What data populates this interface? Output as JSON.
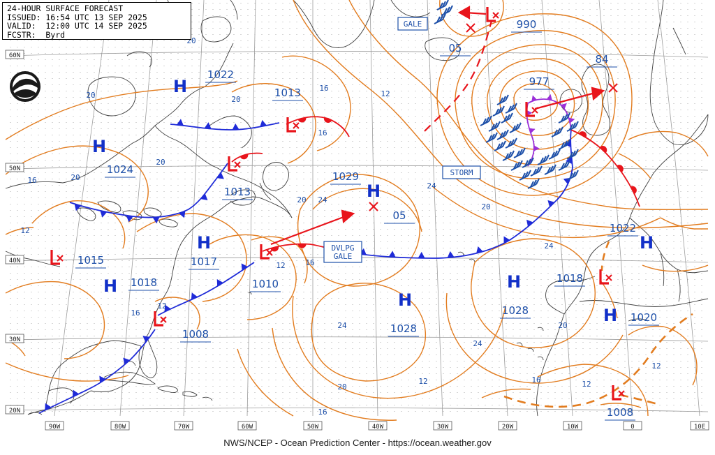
{
  "header": {
    "title": "24-HOUR SURFACE FORECAST",
    "issued": "ISSUED: 16:54 UTC 13 SEP 2025",
    "valid": "VALID:  12:00 UTC 14 SEP 2025",
    "forecaster": "FCSTR:  Byrd"
  },
  "credit": "NWS/NCEP - Ocean Prediction Center - https://ocean.weather.gov",
  "logo_icon": "noaa-logo-icon",
  "colors": {
    "isobar": "#e27c1f",
    "high": "#1230c8",
    "low": "#e8141b",
    "cold_front": "#1f2bd8",
    "warm_front": "#e8141b",
    "occluded_front": "#9b2fd8",
    "label": "#1d4fa8",
    "grid": "#a8a8a8",
    "coast": "#404040"
  },
  "lat_labels": [
    "60N",
    "50N",
    "40N",
    "30N",
    "20N"
  ],
  "lon_labels": [
    "90W",
    "80W",
    "70W",
    "60W",
    "50W",
    "40W",
    "30W",
    "20W",
    "10W",
    "0",
    "10E"
  ],
  "warnings": [
    {
      "id": "gale",
      "text": "GALE"
    },
    {
      "id": "storm",
      "text": "STORM"
    },
    {
      "id": "dvlpg",
      "line1": "DVLPG",
      "line2": "GALE"
    }
  ],
  "highs": [
    {
      "id": "h1",
      "letter": "H",
      "pressure": "1022"
    },
    {
      "id": "h2",
      "letter": "H",
      "pressure": "1024"
    },
    {
      "id": "h3",
      "letter": "H",
      "pressure": "1017"
    },
    {
      "id": "h4",
      "letter": "H",
      "pressure": "1018"
    },
    {
      "id": "h5",
      "letter": "H",
      "pressure": "1029"
    },
    {
      "id": "h6",
      "letter": "H",
      "pressure": "1028"
    },
    {
      "id": "h7",
      "letter": "H",
      "pressure": "1028"
    },
    {
      "id": "h8",
      "letter": "H",
      "pressure": "1022"
    },
    {
      "id": "h9",
      "letter": "H",
      "pressure": "1020"
    }
  ],
  "lows": [
    {
      "id": "l1",
      "pressure": "977"
    },
    {
      "id": "l2",
      "pressure": "990"
    },
    {
      "id": "l3",
      "pressure": "1013"
    },
    {
      "id": "l4",
      "pressure": "1013"
    },
    {
      "id": "l5",
      "pressure": "1015"
    },
    {
      "id": "l6",
      "pressure": "1010"
    },
    {
      "id": "l7",
      "pressure": "1008"
    },
    {
      "id": "l8",
      "pressure": "1018"
    },
    {
      "id": "l9",
      "pressure": "1008"
    }
  ],
  "extra_labels": {
    "a": "05",
    "b": "05",
    "c": "84"
  },
  "isobar_labels": [
    "20",
    "20",
    "20",
    "20",
    "20",
    "16",
    "16",
    "16",
    "16",
    "12",
    "12",
    "12",
    "12",
    "12",
    "24",
    "24",
    "24",
    "24",
    "20",
    "20",
    "20",
    "16",
    "16",
    "12",
    "12",
    "24",
    "20",
    "16"
  ]
}
